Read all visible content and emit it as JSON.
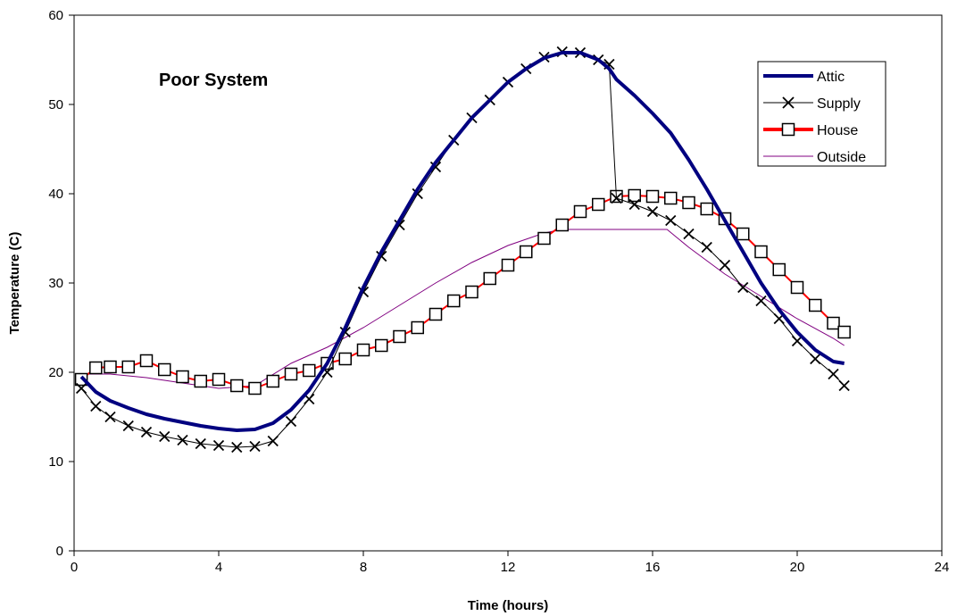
{
  "chart_data": {
    "type": "line",
    "title": "",
    "annotation": "Poor System",
    "xlabel": "Time (hours)",
    "ylabel": "Temperature (C)",
    "xlim": [
      0,
      24
    ],
    "ylim": [
      0,
      60
    ],
    "xticks": [
      0,
      4,
      8,
      12,
      16,
      20,
      24
    ],
    "yticks": [
      0,
      10,
      20,
      30,
      40,
      50,
      60
    ],
    "grid": false,
    "legend_position": "top-right",
    "series": [
      {
        "name": "Attic",
        "color": "#000080",
        "marker": "none",
        "x": [
          0.2,
          0.6,
          1,
          1.5,
          2,
          2.5,
          3,
          3.5,
          4,
          4.5,
          5,
          5.5,
          6,
          6.5,
          7,
          7.5,
          8,
          8.5,
          9,
          9.5,
          10,
          10.5,
          11,
          11.5,
          12,
          12.5,
          13,
          13.5,
          14,
          14.5,
          14.8,
          15,
          15.5,
          16,
          16.5,
          17,
          17.5,
          18,
          18.5,
          19,
          19.5,
          20,
          20.5,
          21,
          21.3
        ],
        "y": [
          19.5,
          17.8,
          16.8,
          16.0,
          15.3,
          14.8,
          14.4,
          14.0,
          13.7,
          13.5,
          13.6,
          14.3,
          15.8,
          18.0,
          21.0,
          25.0,
          29.5,
          33.5,
          37.0,
          40.5,
          43.5,
          46.0,
          48.5,
          50.5,
          52.5,
          54.0,
          55.2,
          55.8,
          55.8,
          55.0,
          54.0,
          52.8,
          51.0,
          49.0,
          46.8,
          43.8,
          40.5,
          37.0,
          33.5,
          30.0,
          27.0,
          24.5,
          22.5,
          21.2,
          21.0
        ]
      },
      {
        "name": "Supply",
        "color": "#000000",
        "marker": "x",
        "x": [
          0.2,
          0.6,
          1,
          1.5,
          2,
          2.5,
          3,
          3.5,
          4,
          4.5,
          5,
          5.5,
          6,
          6.5,
          7,
          7.5,
          8,
          8.5,
          9,
          9.5,
          10,
          10.5,
          11,
          11.5,
          12,
          12.5,
          13,
          13.5,
          14,
          14.5,
          14.8,
          15,
          15.5,
          16,
          16.5,
          17,
          17.5,
          18,
          18.5,
          19,
          19.5,
          20,
          20.5,
          21,
          21.3
        ],
        "y": [
          18.2,
          16.2,
          15.0,
          14.0,
          13.3,
          12.8,
          12.4,
          12.0,
          11.8,
          11.6,
          11.7,
          12.3,
          14.5,
          17.0,
          20.0,
          24.5,
          29.0,
          33.0,
          36.5,
          40.0,
          43.0,
          46.0,
          48.5,
          50.5,
          52.5,
          54.0,
          55.3,
          55.9,
          55.8,
          55.0,
          54.5,
          39.5,
          38.8,
          38.0,
          37.0,
          35.5,
          34.0,
          32.0,
          29.5,
          28.0,
          26.0,
          23.5,
          21.5,
          19.8,
          18.5
        ]
      },
      {
        "name": "House",
        "color": "#ff0000",
        "marker": "square",
        "x": [
          0.2,
          0.6,
          1,
          1.5,
          2,
          2.5,
          3,
          3.5,
          4,
          4.5,
          5,
          5.5,
          6,
          6.5,
          7,
          7.5,
          8,
          8.5,
          9,
          9.5,
          10,
          10.5,
          11,
          11.5,
          12,
          12.5,
          13,
          13.5,
          14,
          14.5,
          15,
          15.5,
          16,
          16.5,
          17,
          17.5,
          18,
          18.5,
          19,
          19.5,
          20,
          20.5,
          21,
          21.3
        ],
        "y": [
          19.2,
          20.5,
          20.6,
          20.6,
          21.3,
          20.3,
          19.5,
          19.0,
          19.2,
          18.5,
          18.2,
          19.0,
          19.8,
          20.2,
          21.0,
          21.5,
          22.5,
          23.0,
          24.0,
          25.0,
          26.5,
          28.0,
          29.0,
          30.5,
          32.0,
          33.5,
          35.0,
          36.5,
          38.0,
          38.8,
          39.7,
          39.8,
          39.7,
          39.5,
          39.0,
          38.3,
          37.2,
          35.5,
          33.5,
          31.5,
          29.5,
          27.5,
          25.5,
          24.5
        ]
      },
      {
        "name": "Outside",
        "color": "#800080",
        "marker": "none",
        "x": [
          0.2,
          1,
          2,
          3,
          4,
          5,
          6,
          7,
          8,
          9,
          10,
          11,
          12,
          13,
          13.5,
          14,
          15,
          16,
          16.4,
          17,
          18,
          19,
          20,
          21,
          21.3
        ],
        "y": [
          19.8,
          19.8,
          19.4,
          18.8,
          18.2,
          18.5,
          21.0,
          22.8,
          25.0,
          27.5,
          30.0,
          32.3,
          34.2,
          35.6,
          36.0,
          36.0,
          36.0,
          36.0,
          36.0,
          34.0,
          31.0,
          28.5,
          26.0,
          23.8,
          23.0
        ]
      }
    ]
  }
}
